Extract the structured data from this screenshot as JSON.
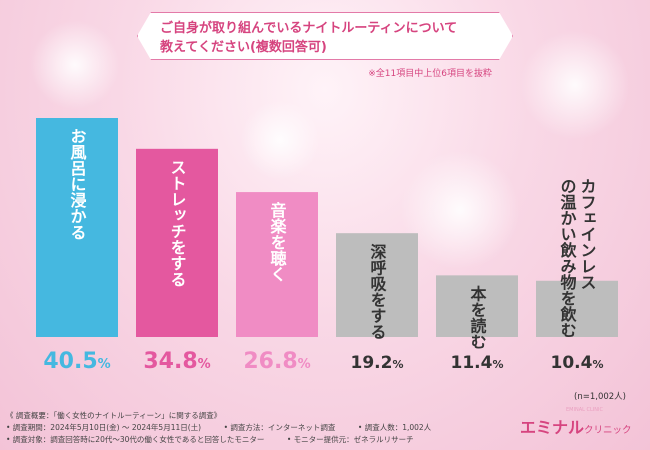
{
  "title": {
    "line1": "ご自身が取り組んでいるナイトルーティンについて",
    "line2": "教えてください(複数回答可)"
  },
  "note": "※全11項目中上位6項目を抜粋",
  "sample_size": "(n=1,002人)",
  "colors": {
    "accent": "#d6447f",
    "bar_blue": "#45b8e0",
    "bar_magenta": "#e4589f",
    "bar_pink": "#f08cc4",
    "bar_gray": "#bdbdbd",
    "white_text": "#ffffff",
    "dark_text": "#333333"
  },
  "chart_data": {
    "type": "bar",
    "categories": [
      "お風呂に浸かる",
      "ストレッチをする",
      "音楽を聴く",
      "深呼吸をする",
      "本を読む",
      "カフェインレスの温かい飲み物を飲む"
    ],
    "values": [
      40.5,
      34.8,
      26.8,
      19.2,
      11.4,
      10.4
    ],
    "value_labels": [
      "40.5%",
      "34.8%",
      "26.8%",
      "19.2%",
      "11.4%",
      "10.4%"
    ],
    "unit": "%",
    "ylim": [
      0,
      45
    ],
    "grid": false,
    "legend": "none"
  },
  "footer": {
    "line1": "《 調査概要：「働く女性のナイトルーティーン」に関する調査》",
    "line2": "• 調査期間：2024年5月10日(金) ～ 2024年5月11日(土)　　　• 調査方法：インターネット調査　　　• 調査人数：1,002人",
    "line3": "• 調査対象：調査回答時に20代～30代の働く女性であると回答したモニター　　　• モニター提供元：ゼネラルリサーチ"
  },
  "logo": {
    "main": "エミナル",
    "sub": "クリニック",
    "tagline": "EMINAL CLINIC"
  }
}
